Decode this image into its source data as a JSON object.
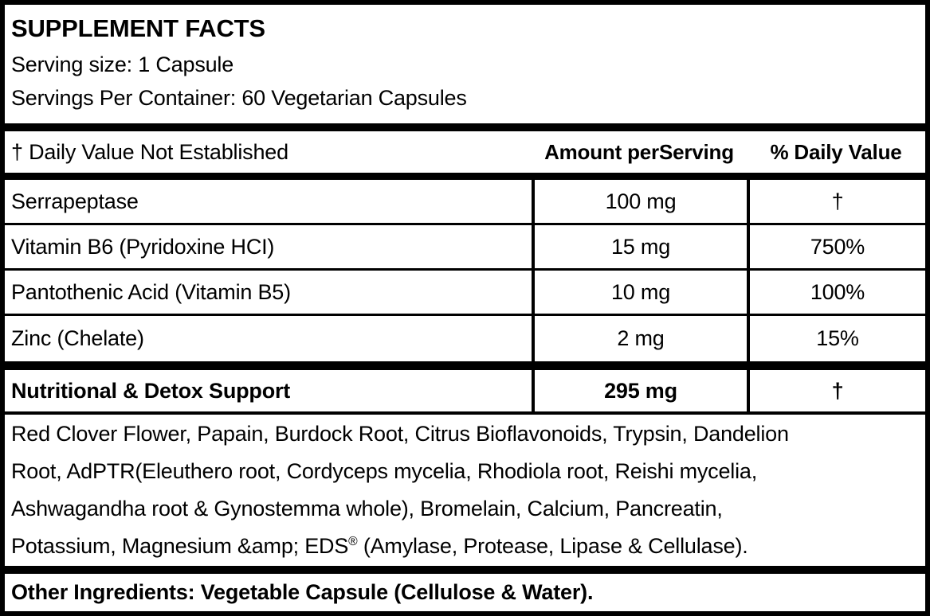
{
  "header": {
    "title": "SUPPLEMENT FACTS",
    "serving_size": "Serving size: 1 Capsule",
    "servings_per_container": "Servings Per Container: 60 Vegetarian Capsules"
  },
  "table": {
    "footnote": "† Daily Value Not Established",
    "col_amount": "Amount perServing",
    "col_daily_value": "% Daily Value",
    "rows": [
      {
        "name": "Serrapeptase",
        "amount": "100 mg",
        "dv": "†"
      },
      {
        "name": "Vitamin B6 (Pyridoxine HCI)",
        "amount": "15 mg",
        "dv": "750%"
      },
      {
        "name": "Pantothenic Acid (Vitamin B5)",
        "amount": "10 mg",
        "dv": "100%"
      },
      {
        "name": "Zinc (Chelate)",
        "amount": "2 mg",
        "dv": "15%"
      }
    ],
    "blend": {
      "name": "Nutritional & Detox Support",
      "amount": "295 mg",
      "dv": "†"
    }
  },
  "blend_ingredients": {
    "lines": [
      "Red Clover Flower, Papain, Burdock Root, Citrus Bioflavonoids, Trypsin, Dandelion",
      "Root, AdPTR(Eleuthero root, Cordyceps mycelia, Rhodiola root, Reishi mycelia,",
      "Ashwagandha root & Gynostemma whole), Bromelain, Calcium, Pancreatin,"
    ],
    "line4": {
      "pre": "Potassium, Magnesium &amp; EDS",
      "reg_mark": "®",
      "post": " (Amylase, Protease, Lipase & Cellulase)."
    }
  },
  "other_ingredients": "Other Ingredients: Vegetable Capsule (Cellulose & Water).",
  "colors": {
    "text": "#000000",
    "background": "#ffffff",
    "border": "#000000"
  }
}
